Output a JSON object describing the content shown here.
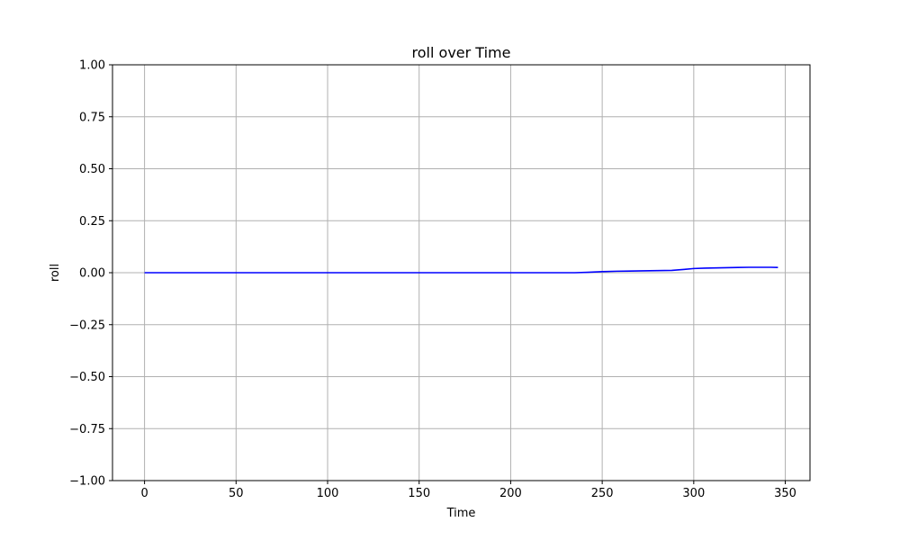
{
  "chart_data": {
    "type": "line",
    "title": "roll over Time",
    "xlabel": "Time",
    "ylabel": "roll",
    "xlim": [
      -17.5,
      363.5
    ],
    "ylim": [
      -1.0,
      1.0
    ],
    "xticks": [
      0,
      50,
      100,
      150,
      200,
      250,
      300,
      350
    ],
    "xtick_labels": [
      "0",
      "50",
      "100",
      "150",
      "200",
      "250",
      "300",
      "350"
    ],
    "yticks": [
      -1.0,
      -0.75,
      -0.5,
      -0.25,
      0.0,
      0.25,
      0.5,
      0.75,
      1.0
    ],
    "ytick_labels": [
      "−1.00",
      "−0.75",
      "−0.50",
      "−0.25",
      "0.00",
      "0.25",
      "0.50",
      "0.75",
      "1.00"
    ],
    "grid": true,
    "series": [
      {
        "color": "#0000ff",
        "x": [
          0,
          15,
          30,
          45,
          60,
          75,
          90,
          105,
          120,
          135,
          150,
          165,
          180,
          195,
          210,
          225,
          235,
          242,
          250,
          258,
          265,
          272,
          280,
          288,
          295,
          300,
          306,
          312,
          318,
          324,
          330,
          336,
          342,
          346
        ],
        "y": [
          0.0,
          0.0,
          0.0,
          0.0,
          0.0,
          0.0,
          0.0,
          0.0,
          0.0,
          0.0,
          0.0,
          0.0,
          0.0,
          0.0,
          0.0,
          0.0,
          0.0,
          0.002,
          0.005,
          0.007,
          0.008,
          0.009,
          0.01,
          0.011,
          0.016,
          0.02,
          0.022,
          0.023,
          0.024,
          0.025,
          0.026,
          0.026,
          0.026,
          0.025
        ]
      }
    ]
  }
}
